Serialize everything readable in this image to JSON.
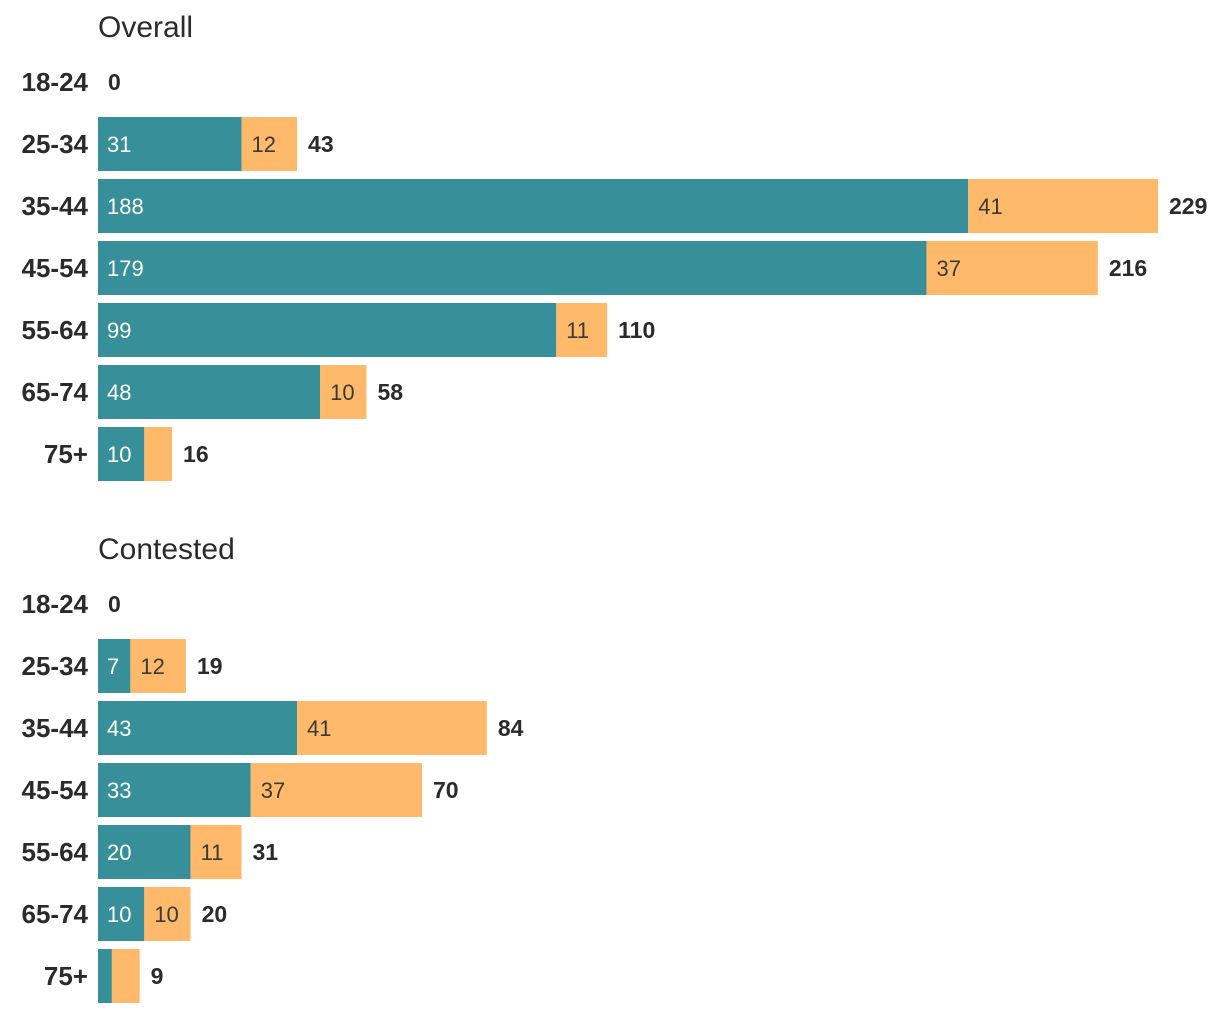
{
  "colors": {
    "series_a": "#368f99",
    "series_b": "#ffb96a"
  },
  "chart_data": [
    {
      "type": "bar",
      "orientation": "horizontal",
      "stacked": true,
      "title": "Overall",
      "categories": [
        "18-24",
        "25-34",
        "35-44",
        "45-54",
        "55-64",
        "65-74",
        "75+"
      ],
      "series": [
        {
          "name": "teal",
          "values": [
            0,
            31,
            188,
            179,
            99,
            48,
            10
          ],
          "labels": [
            "",
            "31",
            "188",
            "179",
            "99",
            "48",
            "10"
          ]
        },
        {
          "name": "orange",
          "values": [
            0,
            12,
            41,
            37,
            11,
            10,
            6
          ],
          "labels": [
            "",
            "12",
            "41",
            "37",
            "11",
            "10",
            ""
          ]
        }
      ],
      "totals": [
        "0",
        "43",
        "229",
        "216",
        "110",
        "58",
        "16"
      ],
      "xlim": [
        0,
        229
      ]
    },
    {
      "type": "bar",
      "orientation": "horizontal",
      "stacked": true,
      "title": "Contested",
      "categories": [
        "18-24",
        "25-34",
        "35-44",
        "45-54",
        "55-64",
        "65-74",
        "75+"
      ],
      "series": [
        {
          "name": "teal",
          "values": [
            0,
            7,
            43,
            33,
            20,
            10,
            3
          ],
          "labels": [
            "",
            "7",
            "43",
            "33",
            "20",
            "10",
            ""
          ]
        },
        {
          "name": "orange",
          "values": [
            0,
            12,
            41,
            37,
            11,
            10,
            6
          ],
          "labels": [
            "",
            "12",
            "41",
            "37",
            "11",
            "10",
            ""
          ]
        }
      ],
      "totals": [
        "0",
        "19",
        "84",
        "70",
        "31",
        "20",
        "9"
      ],
      "xlim": [
        0,
        229
      ]
    }
  ]
}
